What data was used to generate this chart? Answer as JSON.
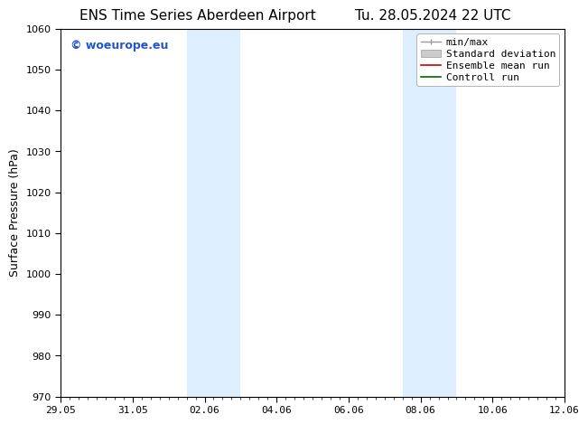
{
  "title": "ENS Time Series Aberdeen Airport",
  "title2": "Tu. 28.05.2024 22 UTC",
  "ylabel": "Surface Pressure (hPa)",
  "ylim": [
    970,
    1060
  ],
  "yticks": [
    970,
    980,
    990,
    1000,
    1010,
    1020,
    1030,
    1040,
    1050,
    1060
  ],
  "xtick_labels": [
    "29.05",
    "31.05",
    "02.06",
    "04.06",
    "06.06",
    "08.06",
    "10.06",
    "12.06"
  ],
  "xtick_positions": [
    0,
    2,
    4,
    6,
    8,
    10,
    12,
    14
  ],
  "xlim": [
    0,
    14
  ],
  "shaded_bands": [
    {
      "x_start": 3.5,
      "x_end": 5.0,
      "color": "#ddeeff"
    },
    {
      "x_start": 9.5,
      "x_end": 11.0,
      "color": "#ddeeff"
    }
  ],
  "legend_items": [
    {
      "label": "min/max",
      "color": "#999999",
      "style": "minmax"
    },
    {
      "label": "Standard deviation",
      "color": "#cccccc",
      "style": "stddev"
    },
    {
      "label": "Ensemble mean run",
      "color": "#cc0000",
      "style": "line"
    },
    {
      "label": "Controll run",
      "color": "#006600",
      "style": "line"
    }
  ],
  "watermark_text": "© woeurope.eu",
  "watermark_color": "#2255cc",
  "background_color": "#ffffff",
  "plot_bg_color": "#ffffff",
  "title_fontsize": 11,
  "label_fontsize": 9,
  "tick_fontsize": 8,
  "legend_fontsize": 8,
  "watermark_fontsize": 9
}
